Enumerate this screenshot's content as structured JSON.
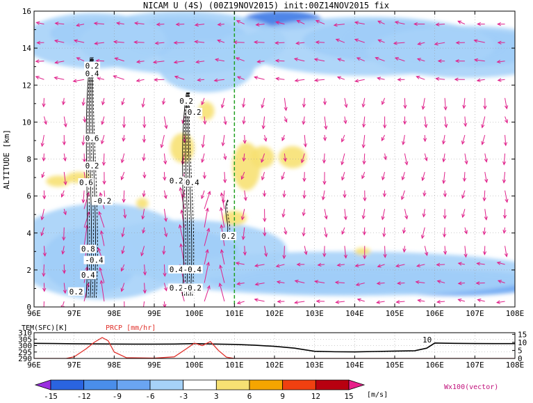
{
  "chart_data": [
    {
      "type": "heatmap",
      "title": "NICAM U (4S) (00Z19NOV2015) init:00Z14NOV2015 fix",
      "ylabel": "ALTITUDE [km]",
      "xlim": [
        96,
        108
      ],
      "ylim": [
        0,
        16
      ],
      "x_ticks": [
        "96E",
        "97E",
        "98E",
        "99E",
        "100E",
        "101E",
        "102E",
        "103E",
        "104E",
        "105E",
        "106E",
        "107E",
        "108E"
      ],
      "y_ticks": [
        "0",
        "2",
        "4",
        "6",
        "8",
        "10",
        "12",
        "14",
        "16"
      ],
      "grid": true,
      "marker_line_x": 101,
      "contour_labels": [
        {
          "text": "0.2",
          "x": 97.45,
          "y": 13.0
        },
        {
          "text": "0.4",
          "x": 97.45,
          "y": 12.6
        },
        {
          "text": "0.2",
          "x": 99.8,
          "y": 11.1
        },
        {
          "text": "0.2",
          "x": 100.0,
          "y": 10.5
        },
        {
          "text": "0.6",
          "x": 97.45,
          "y": 9.1
        },
        {
          "text": "0.2",
          "x": 97.45,
          "y": 7.6
        },
        {
          "text": "0.6",
          "x": 97.3,
          "y": 6.7
        },
        {
          "text": "0.2",
          "x": 99.55,
          "y": 6.8
        },
        {
          "text": "0.4",
          "x": 99.95,
          "y": 6.7
        },
        {
          "text": "-0.2",
          "x": 97.7,
          "y": 5.7
        },
        {
          "text": "0.2",
          "x": 100.85,
          "y": 3.8
        },
        {
          "text": "0.8",
          "x": 97.35,
          "y": 3.1
        },
        {
          "text": "-0.4",
          "x": 97.5,
          "y": 2.5
        },
        {
          "text": "0.4",
          "x": 99.55,
          "y": 2.0
        },
        {
          "text": "-0.4",
          "x": 99.95,
          "y": 2.0
        },
        {
          "text": "0.4",
          "x": 97.35,
          "y": 1.7
        },
        {
          "text": "0.2",
          "x": 97.05,
          "y": 0.8
        },
        {
          "text": "0.2",
          "x": 99.55,
          "y": 1.0
        },
        {
          "text": "-0.2",
          "x": 99.95,
          "y": 1.0
        }
      ],
      "series": [
        {
          "color": "#3a78e6",
          "blobs": [
            [
              99.4,
              14.8,
              0.8,
              0.8
            ],
            [
              100.4,
              14.6,
              0.6,
              0.7
            ],
            [
              104.9,
              14.5,
              1.2,
              0.9
            ],
            [
              106.4,
              14.1,
              1.4,
              0.8
            ],
            [
              102.2,
              15.5,
              1.0,
              0.5
            ],
            [
              103.4,
              1.4,
              2.2,
              0.5
            ],
            [
              106.6,
              1.3,
              1.6,
              0.4
            ],
            [
              97.5,
              2.0,
              0.6,
              0.9
            ]
          ]
        },
        {
          "color": "#6aa5f2",
          "blobs": [
            [
              99.7,
              14.6,
              1.6,
              1.1
            ],
            [
              97.7,
              14.8,
              1.3,
              0.8
            ],
            [
              104.7,
              14.4,
              2.0,
              1.1
            ],
            [
              106.8,
              14.0,
              1.9,
              1.0
            ],
            [
              103.8,
              1.5,
              3.5,
              0.8
            ],
            [
              106.5,
              1.3,
              2.2,
              0.7
            ],
            [
              97.4,
              2.5,
              1.2,
              1.8
            ],
            [
              99.5,
              3.0,
              1.6,
              1.2
            ]
          ]
        },
        {
          "color": "#a6d2f8",
          "blobs": [
            [
              99.7,
              14.3,
              2.6,
              1.7
            ],
            [
              97.5,
              14.4,
              1.8,
              1.5
            ],
            [
              104.3,
              14.1,
              3.2,
              1.6
            ],
            [
              106.8,
              13.8,
              2.5,
              1.4
            ],
            [
              103.8,
              1.8,
              5.0,
              1.2
            ],
            [
              97.7,
              3.0,
              2.3,
              2.6
            ],
            [
              99.8,
              3.1,
              2.5,
              1.6
            ],
            [
              100.3,
              13.0,
              1.2,
              1.4
            ],
            [
              101.2,
              13.8,
              0.7,
              1.0
            ]
          ]
        },
        {
          "color": "#f7e173",
          "blobs": [
            [
              101.3,
              7.6,
              0.35,
              1.3
            ],
            [
              101.7,
              8.1,
              0.3,
              0.6
            ],
            [
              102.45,
              8.1,
              0.35,
              0.6
            ],
            [
              97.1,
              7.0,
              0.3,
              0.3
            ],
            [
              96.6,
              6.8,
              0.3,
              0.3
            ],
            [
              99.7,
              8.6,
              0.3,
              0.8
            ],
            [
              100.3,
              10.6,
              0.2,
              0.5
            ],
            [
              101.0,
              4.8,
              0.3,
              0.4
            ],
            [
              98.7,
              5.6,
              0.15,
              0.3
            ],
            [
              104.2,
              3.0,
              0.2,
              0.2
            ]
          ]
        }
      ],
      "legend": {
        "values": [
          "-15",
          "-12",
          "-9",
          "-6",
          "-3",
          "3",
          "6",
          "9",
          "12",
          "15"
        ],
        "colors": [
          "#9a2fe0",
          "#2a64e0",
          "#4a8eea",
          "#6aa5f2",
          "#a6d2f8",
          "#ffffff",
          "#f7e173",
          "#f5a500",
          "#f04010",
          "#b80010",
          "#e8208a"
        ],
        "unit": "[m/s]",
        "vector_label": "Wx100(vector)"
      }
    },
    {
      "type": "line",
      "title": "",
      "xlim": [
        96,
        108
      ],
      "x_ticks": [
        "96E",
        "97E",
        "98E",
        "99E",
        "100E",
        "101E",
        "102E",
        "103E",
        "104E",
        "105E",
        "106E",
        "107E",
        "108E"
      ],
      "left_axis_title": "TEM(SFC)[K]",
      "right_axis_title": "PRCP [mm/hr]",
      "left_ticks": [
        "290",
        "295",
        "300",
        "305",
        "310"
      ],
      "right_ticks": [
        "0",
        "5",
        "10",
        "15"
      ],
      "ylim_left": [
        290,
        310
      ],
      "ylim_right": [
        0,
        16
      ],
      "annotation": "10",
      "series": [
        {
          "name": "TEM(SFC)[K]",
          "color": "#000000",
          "axis": "left",
          "x": [
            96,
            96.5,
            97,
            97.5,
            98,
            98.5,
            99,
            99.5,
            100,
            100.5,
            101,
            101.5,
            102,
            102.5,
            102.8,
            103,
            103.5,
            104,
            104.5,
            105,
            105.5,
            105.8,
            106,
            106.5,
            107,
            107.5,
            108
          ],
          "y": [
            301.7,
            301.6,
            301.4,
            301.3,
            301.2,
            301.1,
            301.1,
            301.2,
            301.5,
            301.2,
            300.9,
            300.3,
            299.4,
            298.0,
            296.5,
            295.6,
            295.2,
            295.1,
            295.4,
            295.7,
            296.0,
            298.0,
            302.0,
            301.7,
            301.6,
            301.5,
            301.5
          ]
        },
        {
          "name": "PRCP [mm/hr]",
          "color": "#e0302a",
          "axis": "right",
          "x": [
            96,
            96.8,
            97,
            97.3,
            97.5,
            97.7,
            97.85,
            98,
            98.3,
            99,
            99.5,
            99.8,
            100.0,
            100.2,
            100.4,
            100.6,
            100.8,
            101,
            108
          ],
          "y": [
            0,
            0,
            1.0,
            6.0,
            10.0,
            13.0,
            11.0,
            4.0,
            0.5,
            0.2,
            1.0,
            6.0,
            9.5,
            8.0,
            10.5,
            5.0,
            0.8,
            0,
            0
          ]
        }
      ]
    }
  ]
}
